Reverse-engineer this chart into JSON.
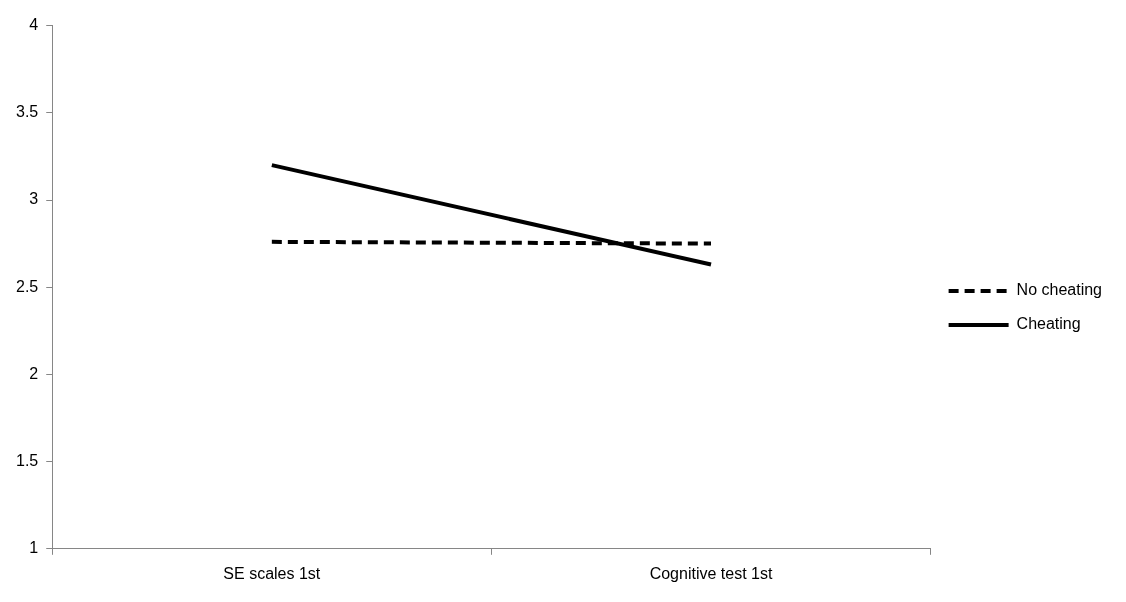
{
  "chart_data": {
    "type": "line",
    "categories": [
      "SE scales 1st",
      "Cognitive test 1st"
    ],
    "series": [
      {
        "name": "No cheating",
        "color": "#000000",
        "values": [
          2.76,
          2.75
        ],
        "line_style": "dashed"
      },
      {
        "name": "Cheating",
        "color": "#000000",
        "values": [
          3.2,
          2.63
        ],
        "line_style": "solid"
      }
    ],
    "ylim": [
      1,
      4
    ],
    "yticks": [
      1,
      1.5,
      2,
      2.5,
      3,
      3.5,
      4
    ],
    "grid": false,
    "legend": "right",
    "marker": "none"
  }
}
